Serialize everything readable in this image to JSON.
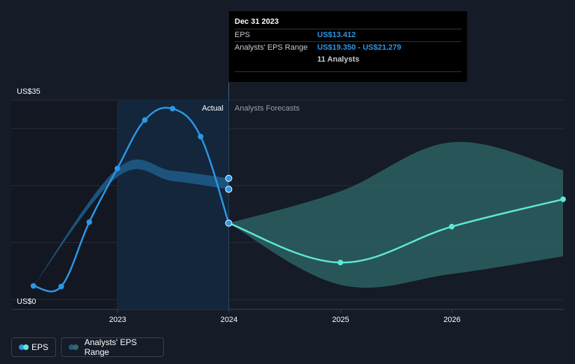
{
  "chart_data": {
    "type": "line",
    "y_axis": {
      "min": 0,
      "max": 35,
      "top_label": "US$35",
      "bottom_label": "US$0",
      "gridlines": [
        0,
        10,
        20,
        30,
        35
      ]
    },
    "x_axis": {
      "range": [
        "2022-03-01",
        "2026-12-31"
      ],
      "tick_labels": [
        "2023",
        "2024",
        "2025",
        "2026"
      ],
      "ticks": [
        "2023-01-01",
        "2024-01-01",
        "2025-01-01",
        "2026-01-01"
      ]
    },
    "region_labels": {
      "actual": "Actual",
      "forecast": "Analysts Forecasts"
    },
    "highlight_range": [
      "2023-01-01",
      "2023-12-31"
    ],
    "series": [
      {
        "name": "EPS",
        "color": "#2d97e4",
        "points": [
          {
            "x": "2022-03-31",
            "y": 2.4
          },
          {
            "x": "2022-06-30",
            "y": 2.3
          },
          {
            "x": "2022-09-30",
            "y": 13.6
          },
          {
            "x": "2022-12-31",
            "y": 23.0
          },
          {
            "x": "2023-03-31",
            "y": 31.5
          },
          {
            "x": "2023-06-30",
            "y": 33.5
          },
          {
            "x": "2023-09-30",
            "y": 28.6
          },
          {
            "x": "2023-12-31",
            "y": 13.412
          }
        ]
      },
      {
        "name": "EPS forecast",
        "color": "#5ee8d6",
        "points": [
          {
            "x": "2023-12-31",
            "y": 13.412
          },
          {
            "x": "2024-12-31",
            "y": 6.5
          },
          {
            "x": "2025-12-31",
            "y": 12.8
          },
          {
            "x": "2026-12-31",
            "y": 17.6
          }
        ]
      }
    ],
    "past_estimate_band": {
      "color": "#1e5a86",
      "points": [
        {
          "x": "2022-03-31",
          "low": 2.4,
          "high": 2.4
        },
        {
          "x": "2022-12-31",
          "low": 21.5,
          "high": 23.0
        },
        {
          "x": "2023-06-30",
          "low": 20.8,
          "high": 22.6
        },
        {
          "x": "2023-12-31",
          "low": 19.35,
          "high": 21.279
        }
      ],
      "markers": [
        19.35,
        21.279
      ]
    },
    "forecast_band": {
      "color": "#2f6b6a",
      "points": [
        {
          "x": "2023-12-31",
          "low": 13.412,
          "high": 13.412
        },
        {
          "x": "2024-12-31",
          "low": 2.6,
          "high": 19.0
        },
        {
          "x": "2025-12-31",
          "low": 4.5,
          "high": 27.6
        },
        {
          "x": "2026-12-31",
          "low": 7.6,
          "high": 22.7
        }
      ]
    }
  },
  "tooltip": {
    "title": "Dec 31 2023",
    "eps_label": "EPS",
    "eps_value": "US$13.412",
    "range_label": "Analysts' EPS Range",
    "range_value": "US$19.350 - US$21.279",
    "analysts": "11 Analysts"
  },
  "legend": {
    "eps_label": "EPS",
    "range_label": "Analysts' EPS Range"
  }
}
